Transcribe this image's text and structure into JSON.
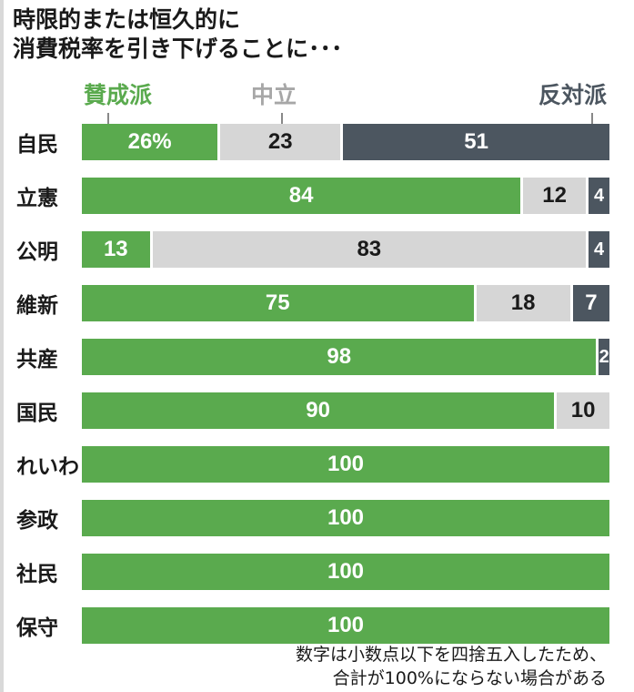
{
  "chart_data": {
    "type": "bar",
    "orientation": "horizontal-stacked",
    "title_lines": [
      "時限的または恒久的に",
      "消費税率を引き下げることに･･･"
    ],
    "series": [
      {
        "name": "賛成派",
        "color": "#5aaa4e"
      },
      {
        "name": "中立",
        "color": "#d6d6d6"
      },
      {
        "name": "反対派",
        "color": "#4c5660"
      }
    ],
    "legend_colors": {
      "賛成派": "#5aaa4e",
      "中立": "#a7a7a7",
      "反対派": "#4c5660"
    },
    "categories": [
      "自民",
      "立憲",
      "公明",
      "維新",
      "共産",
      "国民",
      "れいわ",
      "参政",
      "社民",
      "保守"
    ],
    "values": [
      [
        26,
        23,
        51
      ],
      [
        84,
        12,
        4
      ],
      [
        13,
        83,
        4
      ],
      [
        75,
        18,
        7
      ],
      [
        98,
        0,
        2
      ],
      [
        90,
        10,
        0
      ],
      [
        100,
        0,
        0
      ],
      [
        100,
        0,
        0
      ],
      [
        100,
        0,
        0
      ],
      [
        100,
        0,
        0
      ]
    ],
    "first_value_suffix": "%",
    "xlim": [
      0,
      100
    ],
    "legend_placement": "top",
    "note_lines": [
      "数字は小数点以下を四捨五入したため、",
      "合計が100%にならない場合がある"
    ]
  }
}
